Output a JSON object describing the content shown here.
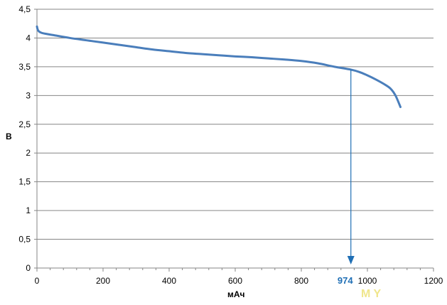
{
  "chart_data": {
    "type": "line",
    "title": "",
    "xlabel": "мАч",
    "ylabel": "В",
    "xlim": [
      0,
      1200
    ],
    "ylim": [
      0,
      4.5
    ],
    "x_ticks": [
      "0",
      "200",
      "400",
      "600",
      "800",
      "1000",
      "1200"
    ],
    "x_tick_values": [
      0,
      200,
      400,
      600,
      800,
      1000,
      1200
    ],
    "y_ticks": [
      "0",
      "0,5",
      "1",
      "1,5",
      "2",
      "2,5",
      "3",
      "3,5",
      "4",
      "4,5"
    ],
    "y_tick_values": [
      0,
      0.5,
      1,
      1.5,
      2,
      2.5,
      3,
      3.5,
      4,
      4.5
    ],
    "grid": "horizontal",
    "series": [
      {
        "color": "#4a7ebb",
        "x": [
          0,
          2,
          5,
          10,
          20,
          50,
          100,
          150,
          200,
          250,
          300,
          350,
          400,
          450,
          500,
          550,
          600,
          650,
          700,
          750,
          800,
          850,
          900,
          950,
          975,
          1000,
          1025,
          1050,
          1070,
          1085,
          1100
        ],
        "y": [
          4.2,
          4.15,
          4.12,
          4.1,
          4.08,
          4.05,
          4.0,
          3.96,
          3.92,
          3.88,
          3.84,
          3.8,
          3.77,
          3.74,
          3.72,
          3.7,
          3.68,
          3.665,
          3.645,
          3.625,
          3.6,
          3.56,
          3.5,
          3.45,
          3.41,
          3.35,
          3.28,
          3.2,
          3.12,
          3.0,
          2.8
        ]
      }
    ],
    "annotation": {
      "label": "974",
      "x": 950,
      "y_from": 3.45,
      "y_to": 0,
      "color": "#1f6fb5"
    },
    "watermark": "M Y"
  },
  "colors": {
    "line": "#4a7ebb",
    "grid": "#868686",
    "annotation": "#1f6fb5",
    "watermark": "#f0e68c"
  }
}
